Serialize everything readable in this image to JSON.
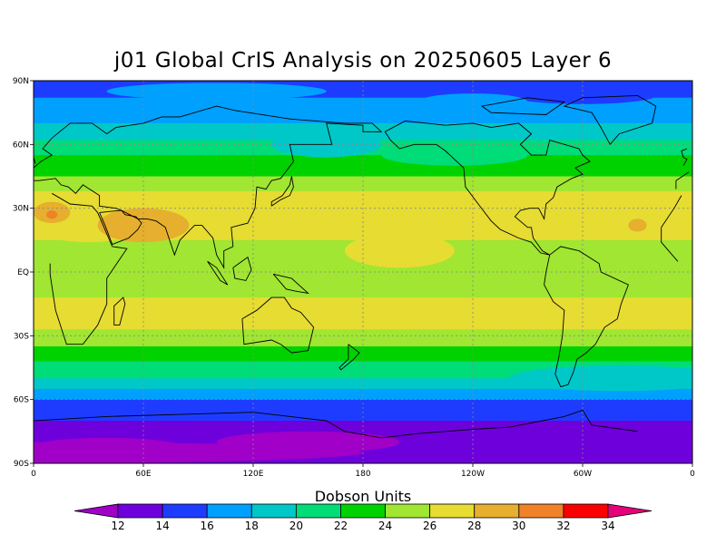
{
  "title": "j01 Global CrIS Analysis on 20250605 Layer 6",
  "colorbar": {
    "title": "Dobson Units",
    "labels": [
      "12",
      "14",
      "16",
      "18",
      "20",
      "22",
      "24",
      "26",
      "28",
      "30",
      "32",
      "34"
    ],
    "colors": [
      "#a000c8",
      "#6e00dc",
      "#1e3cff",
      "#00a0ff",
      "#00c8c8",
      "#00dc78",
      "#00d200",
      "#a0e632",
      "#e6dc32",
      "#e6af2d",
      "#f08228",
      "#fa0000",
      "#e6007a"
    ]
  },
  "axes": {
    "y_ticks": [
      "90N",
      "60N",
      "30N",
      "EQ",
      "30S",
      "60S",
      "90S"
    ],
    "x_ticks": [
      "0",
      "60E",
      "120E",
      "180",
      "120W",
      "60W",
      "0"
    ]
  },
  "field": {
    "description_free": true,
    "lat_bands": [
      {
        "lat": 80,
        "level": 2
      },
      {
        "lat": 70,
        "level": 3
      },
      {
        "lat": 60,
        "level": 4
      },
      {
        "lat": 50,
        "level": 5
      },
      {
        "lat": 40,
        "level": 6
      },
      {
        "lat": 30,
        "level": 7
      },
      {
        "lat": 15,
        "level": 7
      },
      {
        "lat": 0,
        "level": 7
      },
      {
        "lat": -15,
        "level": 7
      },
      {
        "lat": -30,
        "level": 6
      },
      {
        "lat": -40,
        "level": 5
      },
      {
        "lat": -50,
        "level": 4
      },
      {
        "lat": -60,
        "level": 2
      },
      {
        "lat": -75,
        "level": 1
      },
      {
        "lat": -85,
        "level": 0
      }
    ]
  }
}
